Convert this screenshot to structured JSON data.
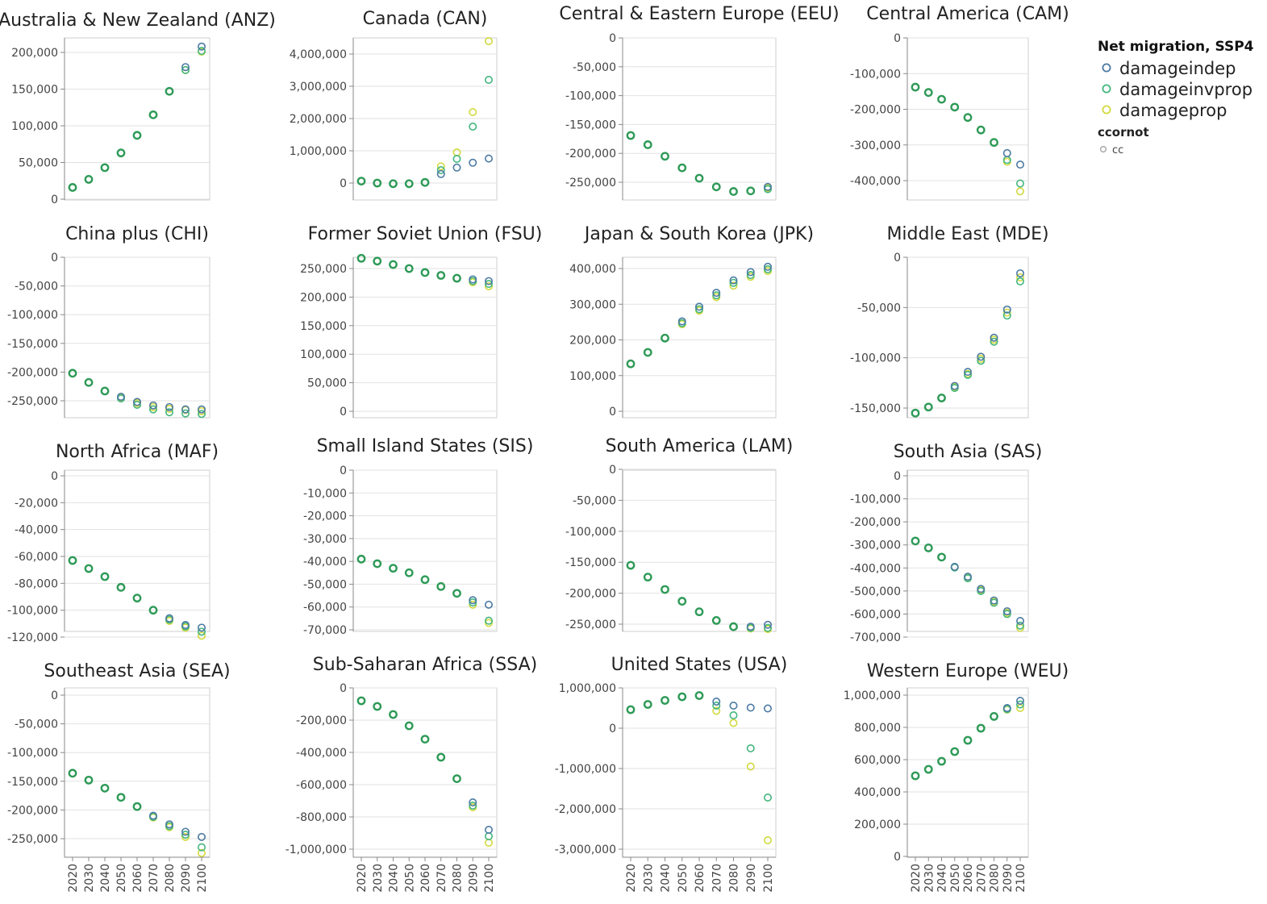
{
  "colors": {
    "damageindep": "#4c7aa3",
    "damageinvprop": "#43b67e",
    "damageprop": "#d2d93e",
    "combined": "#2e9a57",
    "cc": "#999999"
  },
  "legend": {
    "title": "Net migration, SSP4",
    "items": [
      {
        "label": "damageindep",
        "color_key": "damageindep"
      },
      {
        "label": "damageinvprop",
        "color_key": "damageinvprop"
      },
      {
        "label": "damageprop",
        "color_key": "damageprop"
      }
    ],
    "subtitle": "ccornot",
    "sub_items": [
      {
        "label": "cc",
        "color_key": "cc"
      }
    ]
  },
  "chart_data": {
    "type": "scatter",
    "x": [
      2020,
      2030,
      2040,
      2050,
      2060,
      2070,
      2080,
      2090,
      2100
    ],
    "x_tick_labels": [
      "2020",
      "2030",
      "2040",
      "2050",
      "2060",
      "2070",
      "2080",
      "2090",
      "2100"
    ],
    "series_names": [
      "damageindep",
      "damageinvprop",
      "damageprop"
    ],
    "panels": [
      {
        "title": "Australia & New Zealand (ANZ)",
        "ylim": [
          0,
          200000
        ],
        "yticks": [
          0,
          50000,
          100000,
          150000,
          200000
        ],
        "ytick_labels": [
          "0",
          "50,000",
          "100,000",
          "150,000",
          "200,000"
        ],
        "common": [
          16000,
          27000,
          43000,
          63000,
          87000,
          115000,
          147000
        ],
        "tail": {
          "damageindep": [
            180000,
            208000
          ],
          "damageinvprop": [
            176000,
            202000
          ],
          "damageprop": [
            176000,
            201000
          ]
        }
      },
      {
        "title": "Canada (CAN)",
        "ylim": [
          0,
          4000000
        ],
        "yticks": [
          0,
          1000000,
          2000000,
          3000000,
          4000000
        ],
        "ytick_labels": [
          "0",
          "1,000,000",
          "2,000,000",
          "3,000,000",
          "4,000,000"
        ],
        "common": [
          60000,
          0,
          -20000,
          -20000,
          20000
        ],
        "tail": {
          "damageindep": [
            280000,
            480000,
            630000,
            760000
          ],
          "damageinvprop": [
            400000,
            750000,
            1750000,
            3200000
          ],
          "damageprop": [
            520000,
            950000,
            2200000,
            4400000
          ]
        }
      },
      {
        "title": "Central & Eastern Europe (EEU)",
        "ylim": [
          -250000,
          0
        ],
        "yticks": [
          0,
          -50000,
          -100000,
          -150000,
          -200000,
          -250000
        ],
        "ytick_labels": [
          "0",
          "-50,000",
          "-100,000",
          "-150,000",
          "-200,000",
          "-250,000"
        ],
        "common": [
          -169000,
          -185000,
          -205000,
          -225000,
          -243000,
          -258000,
          -266000,
          -265000
        ],
        "tail": {
          "damageindep": [
            -258000
          ],
          "damageinvprop": [
            -262000
          ],
          "damageprop": [
            -260000
          ]
        }
      },
      {
        "title": "Central America (CAM)",
        "ylim": [
          -400000,
          0
        ],
        "yticks": [
          0,
          -100000,
          -200000,
          -300000,
          -400000
        ],
        "ytick_labels": [
          "0",
          "-100,000",
          "-200,000",
          "-300,000",
          "-400,000"
        ],
        "common": [
          -138000,
          -153000,
          -172000,
          -194000,
          -223000,
          -258000,
          -293000
        ],
        "tail": {
          "damageindep": [
            -323000,
            -355000
          ],
          "damageinvprop": [
            -342000,
            -408000
          ],
          "damageprop": [
            -347000,
            -430000
          ]
        }
      },
      {
        "title": "China plus (CHI)",
        "ylim": [
          -250000,
          0
        ],
        "yticks": [
          0,
          -50000,
          -100000,
          -150000,
          -200000,
          -250000
        ],
        "ytick_labels": [
          "0",
          "-50,000",
          "-100,000",
          "-150,000",
          "-200,000",
          "-250,000"
        ],
        "common": [
          -202000,
          -218000,
          -233000
        ],
        "tail": {
          "damageindep": [
            -243000,
            -252000,
            -258000,
            -261000,
            -265000,
            -265000
          ],
          "damageinvprop": [
            -246000,
            -257000,
            -265000,
            -270000,
            -272000,
            -273000
          ],
          "damageprop": [
            -244000,
            -254000,
            -261000,
            -264000,
            -266000,
            -268000
          ]
        }
      },
      {
        "title": "Former Soviet Union (FSU)",
        "ylim": [
          0,
          250000
        ],
        "yticks": [
          0,
          50000,
          100000,
          150000,
          200000,
          250000
        ],
        "ytick_labels": [
          "0",
          "50,000",
          "100,000",
          "150,000",
          "200,000",
          "250,000"
        ],
        "common": [
          268000,
          263000,
          257000,
          250000,
          243000,
          238000,
          233000
        ],
        "tail": {
          "damageindep": [
            231000,
            228000
          ],
          "damageinvprop": [
            228000,
            223000
          ],
          "damageprop": [
            226000,
            219000
          ]
        }
      },
      {
        "title": "Japan & South Korea (JPK)",
        "ylim": [
          0,
          400000
        ],
        "yticks": [
          0,
          100000,
          200000,
          300000,
          400000
        ],
        "ytick_labels": [
          "0",
          "100,000",
          "200,000",
          "300,000",
          "400,000"
        ],
        "common": [
          133000,
          165000,
          205000
        ],
        "tail": {
          "damageindep": [
            252000,
            293000,
            332000,
            367000,
            390000,
            405000
          ],
          "damageinvprop": [
            247000,
            286000,
            325000,
            360000,
            382000,
            398000
          ],
          "damageprop": [
            244000,
            282000,
            320000,
            352000,
            377000,
            393000
          ]
        }
      },
      {
        "title": "Middle East (MDE)",
        "ylim": [
          -150000,
          0
        ],
        "yticks": [
          0,
          -50000,
          -100000,
          -150000
        ],
        "ytick_labels": [
          "0",
          "-50,000",
          "-100,000",
          "-150,000"
        ],
        "common": [
          -155000,
          -149000,
          -140000
        ],
        "tail": {
          "damageindep": [
            -128000,
            -114000,
            -99000,
            -80000,
            -52000,
            -16000
          ],
          "damageinvprop": [
            -130000,
            -117000,
            -103000,
            -84000,
            -58000,
            -24000
          ],
          "damageprop": [
            -129000,
            -116000,
            -101000,
            -82000,
            -55000,
            -20000
          ]
        }
      },
      {
        "title": "North Africa (MAF)",
        "ylim": [
          -120000,
          0
        ],
        "yticks": [
          0,
          -20000,
          -40000,
          -60000,
          -80000,
          -100000,
          -120000
        ],
        "ytick_labels": [
          "0",
          "-20,000",
          "-40,000",
          "-60,000",
          "-80,000",
          "-100,000",
          "-120,000"
        ],
        "common": [
          -63000,
          -69000,
          -75000,
          -83000,
          -91000,
          -100000
        ],
        "tail": {
          "damageindep": [
            -106000,
            -111000,
            -113000
          ],
          "damageinvprop": [
            -107000,
            -112000,
            -116000
          ],
          "damageprop": [
            -108000,
            -113000,
            -119000
          ]
        }
      },
      {
        "title": "Small Island States (SIS)",
        "ylim": [
          -70000,
          0
        ],
        "yticks": [
          0,
          -10000,
          -20000,
          -30000,
          -40000,
          -50000,
          -60000,
          -70000
        ],
        "ytick_labels": [
          "0",
          "-10,000",
          "-20,000",
          "-30,000",
          "-40,000",
          "-50,000",
          "-60,000",
          "-70,000"
        ],
        "common": [
          -39000,
          -41000,
          -43000,
          -45000,
          -48000,
          -51000,
          -54000
        ],
        "tail": {
          "damageindep": [
            -57000,
            -59000
          ],
          "damageinvprop": [
            -58000,
            -66000
          ],
          "damageprop": [
            -59000,
            -67000
          ]
        }
      },
      {
        "title": "South America (LAM)",
        "ylim": [
          -250000,
          0
        ],
        "yticks": [
          0,
          -50000,
          -100000,
          -150000,
          -200000,
          -250000
        ],
        "ytick_labels": [
          "0",
          "-50,000",
          "-100,000",
          "-150,000",
          "-200,000",
          "-250,000"
        ],
        "common": [
          -155000,
          -174000,
          -194000,
          -213000,
          -230000,
          -244000,
          -254000
        ],
        "tail": {
          "damageindep": [
            -254000,
            -251000
          ],
          "damageinvprop": [
            -256000,
            -256000
          ],
          "damageprop": [
            -257000,
            -258000
          ]
        }
      },
      {
        "title": "South Asia (SAS)",
        "ylim": [
          -700000,
          0
        ],
        "yticks": [
          0,
          -100000,
          -200000,
          -300000,
          -400000,
          -500000,
          -600000,
          -700000
        ],
        "ytick_labels": [
          "0",
          "-100,000",
          "-200,000",
          "-300,000",
          "-400,000",
          "-500,000",
          "-600,000",
          "-700,000"
        ],
        "common": [
          -283000,
          -313000,
          -353000
        ],
        "tail": {
          "damageindep": [
            -395000,
            -438000,
            -491000,
            -541000,
            -588000,
            -630000
          ],
          "damageinvprop": [
            -398000,
            -445000,
            -500000,
            -551000,
            -600000,
            -650000
          ],
          "damageprop": [
            -397000,
            -442000,
            -496000,
            -547000,
            -595000,
            -660000
          ]
        }
      },
      {
        "title": "Southeast Asia (SEA)",
        "ylim": [
          -250000,
          0
        ],
        "yticks": [
          0,
          -50000,
          -100000,
          -150000,
          -200000,
          -250000
        ],
        "ytick_labels": [
          "0",
          "-50,000",
          "-100,000",
          "-150,000",
          "-200,000",
          "-250,000"
        ],
        "common": [
          -136000,
          -148000,
          -162000,
          -178000,
          -194000
        ],
        "tail": {
          "damageindep": [
            -210000,
            -225000,
            -238000,
            -247000
          ],
          "damageinvprop": [
            -212000,
            -228000,
            -243000,
            -265000
          ],
          "damageprop": [
            -213000,
            -230000,
            -247000,
            -275000
          ]
        }
      },
      {
        "title": "Sub-Saharan Africa (SSA)",
        "ylim": [
          -1000000,
          0
        ],
        "yticks": [
          0,
          -200000,
          -400000,
          -600000,
          -800000,
          -1000000
        ],
        "ytick_labels": [
          "0",
          "-200,000",
          "-400,000",
          "-600,000",
          "-800,000",
          "-1,000,000"
        ],
        "common": [
          -80000,
          -115000,
          -165000,
          -235000,
          -318000,
          -430000,
          -563000
        ],
        "tail": {
          "damageindep": [
            -710000,
            -880000
          ],
          "damageinvprop": [
            -730000,
            -920000
          ],
          "damageprop": [
            -740000,
            -960000
          ]
        }
      },
      {
        "title": "United States (USA)",
        "ylim": [
          -3000000,
          1000000
        ],
        "yticks": [
          1000000,
          0,
          -1000000,
          -2000000,
          -3000000
        ],
        "ytick_labels": [
          "1,000,000",
          "0",
          "-1,000,000",
          "-2,000,000",
          "-3,000,000"
        ],
        "common": [
          460000,
          590000,
          690000,
          780000,
          810000
        ],
        "tail": {
          "damageindep": [
            660000,
            560000,
            510000,
            490000
          ],
          "damageinvprop": [
            560000,
            320000,
            -500000,
            -1720000
          ],
          "damageprop": [
            430000,
            130000,
            -950000,
            -2780000
          ]
        }
      },
      {
        "title": "Western Europe (WEU)",
        "ylim": [
          0,
          1000000
        ],
        "yticks": [
          0,
          200000,
          400000,
          600000,
          800000,
          1000000
        ],
        "ytick_labels": [
          "0",
          "200,000",
          "400,000",
          "600,000",
          "800,000",
          "1,000,000"
        ],
        "common": [
          500000,
          540000,
          590000,
          650000,
          720000,
          795000,
          868000
        ],
        "tail": {
          "damageindep": [
            920000,
            965000
          ],
          "damageinvprop": [
            913000,
            942000
          ],
          "damageprop": [
            910000,
            920000
          ]
        }
      }
    ]
  }
}
